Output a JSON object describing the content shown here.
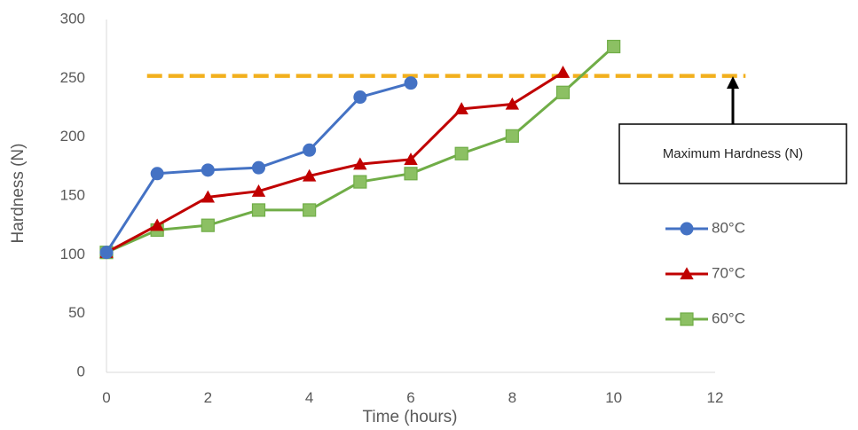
{
  "chart_data": {
    "type": "line",
    "title": "",
    "xlabel": "Time (hours)",
    "ylabel": "Hardness (N)",
    "xlim": [
      0,
      12
    ],
    "ylim": [
      0,
      300
    ],
    "x_ticks": [
      0,
      2,
      4,
      6,
      8,
      10,
      12
    ],
    "y_ticks": [
      0,
      50,
      100,
      150,
      200,
      250,
      300
    ],
    "x_tick_labels": [
      "0",
      "2",
      "4",
      "6",
      "8",
      "10",
      "12"
    ],
    "y_tick_labels": [
      "0",
      "50",
      "100",
      "150",
      "200",
      "250",
      "300"
    ],
    "grid": false,
    "legend_position": "right",
    "series": [
      {
        "name": "80°C",
        "color": "#4472C4",
        "marker": "circle",
        "x": [
          0,
          1,
          2,
          3,
          4,
          5,
          6
        ],
        "y": [
          102,
          169,
          172,
          174,
          189,
          234,
          246
        ]
      },
      {
        "name": "70°C",
        "color": "#C00000",
        "marker": "triangle",
        "x": [
          0,
          1,
          2,
          3,
          4,
          5,
          6,
          7,
          8,
          9
        ],
        "y": [
          102,
          125,
          149,
          154,
          167,
          177,
          181,
          224,
          228,
          255
        ]
      },
      {
        "name": "60°C",
        "color": "#70AD47",
        "marker": "square",
        "x": [
          0,
          1,
          2,
          3,
          4,
          5,
          6,
          7,
          8,
          9,
          10
        ],
        "y": [
          102,
          121,
          125,
          138,
          138,
          162,
          169,
          186,
          201,
          238,
          277
        ]
      }
    ],
    "reference_line": {
      "y": 252,
      "x_range": [
        0.8,
        12.6
      ],
      "color": "#F2B01E",
      "style": "dashed"
    },
    "annotation": {
      "text": "Maximum Hardness (N)",
      "arrow_color": "#000000"
    }
  }
}
